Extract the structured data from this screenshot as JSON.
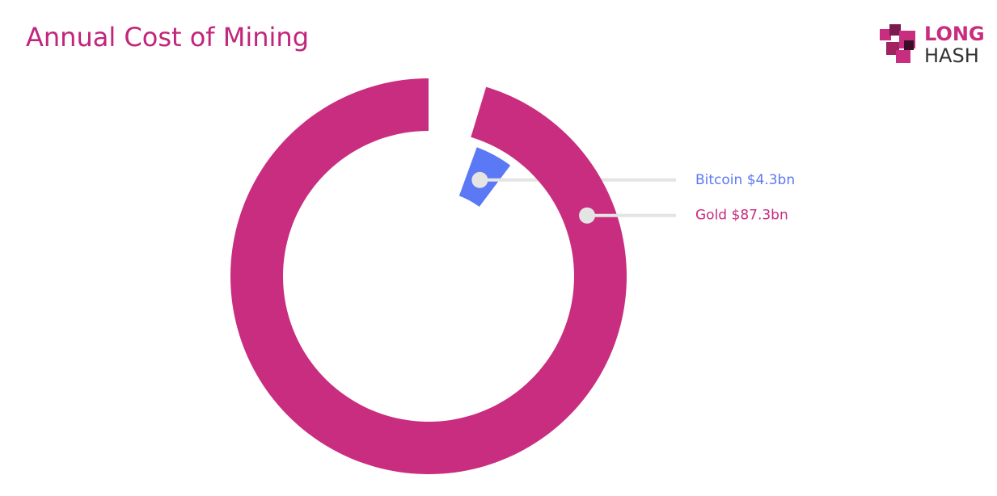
{
  "chart_data": {
    "type": "pie",
    "title": "Annual Cost of Mining",
    "categories": [
      "Bitcoin",
      "Gold"
    ],
    "values": [
      4.3,
      87.3
    ],
    "value_labels": [
      "$4.3bn",
      "$87.3bn"
    ],
    "colors": [
      "#5b78f5",
      "#c92d7f"
    ]
  },
  "logo": {
    "line1": "LONG",
    "line2": "HASH"
  }
}
